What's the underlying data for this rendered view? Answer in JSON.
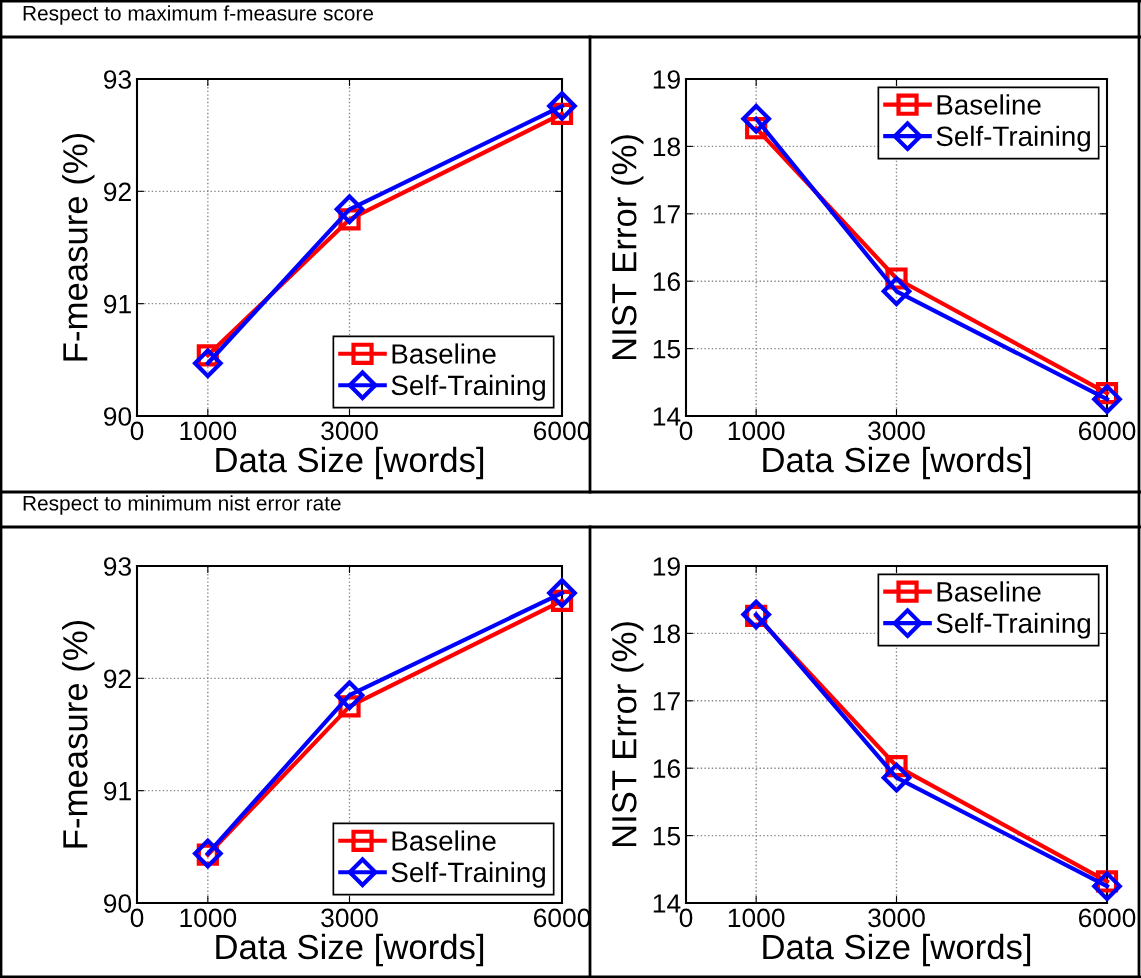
{
  "chart_data": [
    {
      "type": "line",
      "annotations": [
        "Respect to maximum f-measure score"
      ],
      "xlabel": "Data Size [words]",
      "ylabel": "F-measure (%)",
      "x": [
        1000,
        3000,
        6000
      ],
      "xlim": [
        0,
        6000
      ],
      "xticks": [
        0,
        1000,
        3000,
        6000
      ],
      "ylim": [
        90,
        93
      ],
      "yticks": [
        90,
        91,
        92,
        93
      ],
      "grid": true,
      "legend": "bottom right",
      "line_style": "solid",
      "series": [
        {
          "name": "Baseline",
          "color": "#ff0000",
          "marker": "square",
          "values": [
            90.54,
            91.75,
            92.69
          ]
        },
        {
          "name": "Self-Training",
          "color": "#0000ff",
          "marker": "diamond",
          "values": [
            90.47,
            91.84,
            92.76
          ]
        }
      ]
    },
    {
      "type": "line",
      "xlabel": "Data Size [words]",
      "ylabel": "NIST Error (%)",
      "x": [
        1000,
        3000,
        6000
      ],
      "xlim": [
        0,
        6000
      ],
      "xticks": [
        0,
        1000,
        3000,
        6000
      ],
      "ylim": [
        14,
        19
      ],
      "yticks": [
        14,
        15,
        16,
        17,
        18,
        19
      ],
      "grid": true,
      "legend": "top right",
      "line_style": "solid",
      "series": [
        {
          "name": "Baseline",
          "color": "#ff0000",
          "marker": "square",
          "values": [
            18.27,
            16.04,
            14.34
          ]
        },
        {
          "name": "Self-Training",
          "color": "#0000ff",
          "marker": "diamond",
          "values": [
            18.41,
            15.85,
            14.25
          ]
        }
      ]
    },
    {
      "type": "line",
      "annotations": [
        "Respect to minimum nist error rate"
      ],
      "xlabel": "Data Size [words]",
      "ylabel": "F-measure (%)",
      "x": [
        1000,
        3000,
        6000
      ],
      "xlim": [
        0,
        6000
      ],
      "xticks": [
        0,
        1000,
        3000,
        6000
      ],
      "ylim": [
        90,
        93
      ],
      "yticks": [
        90,
        91,
        92,
        93
      ],
      "grid": true,
      "legend": "bottom right",
      "line_style": "solid",
      "series": [
        {
          "name": "Baseline",
          "color": "#ff0000",
          "marker": "square",
          "values": [
            90.43,
            91.75,
            92.69
          ]
        },
        {
          "name": "Self-Training",
          "color": "#0000ff",
          "marker": "diamond",
          "values": [
            90.44,
            91.85,
            92.76
          ]
        }
      ]
    },
    {
      "type": "line",
      "xlabel": "Data Size [words]",
      "ylabel": "NIST Error (%)",
      "x": [
        1000,
        3000,
        6000
      ],
      "xlim": [
        0,
        6000
      ],
      "xticks": [
        0,
        1000,
        3000,
        6000
      ],
      "ylim": [
        14,
        19
      ],
      "yticks": [
        14,
        15,
        16,
        17,
        18,
        19
      ],
      "grid": true,
      "legend": "top right",
      "line_style": "solid",
      "series": [
        {
          "name": "Baseline",
          "color": "#ff0000",
          "marker": "square",
          "values": [
            18.26,
            16.03,
            14.32
          ]
        },
        {
          "name": "Self-Training",
          "color": "#0000ff",
          "marker": "diamond",
          "values": [
            18.28,
            15.86,
            14.25
          ]
        }
      ]
    }
  ]
}
